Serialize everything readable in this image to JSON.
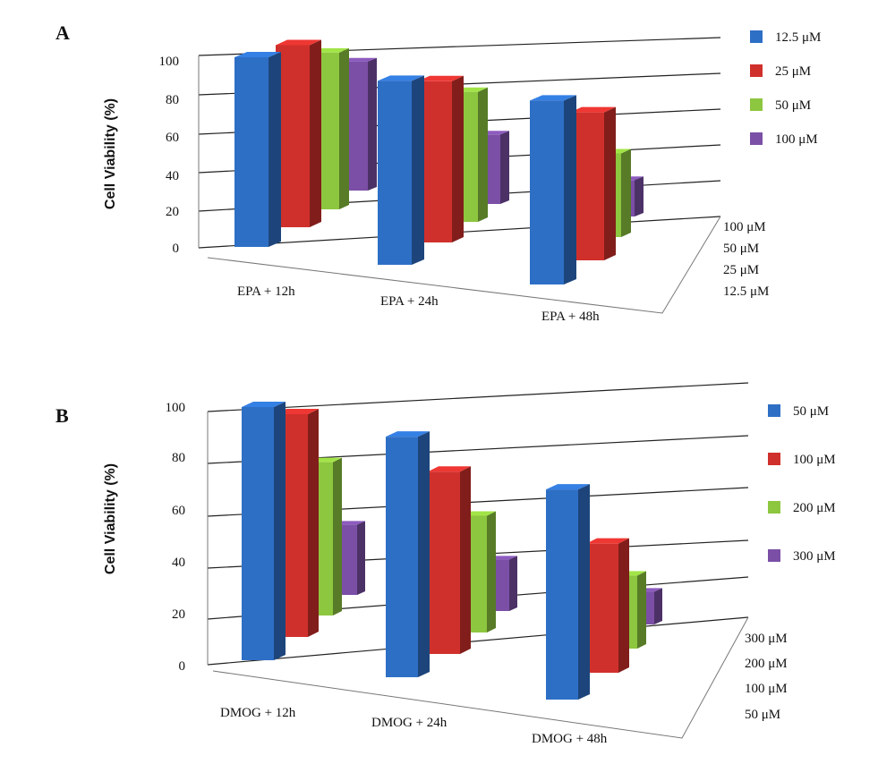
{
  "chart_data": [
    {
      "panel": "A",
      "type": "bar",
      "ylabel": "Cell Viability (%)",
      "ylim": [
        0,
        100
      ],
      "yticks": [
        "0",
        "20",
        "40",
        "60",
        "80",
        "100"
      ],
      "categories": [
        "EPA + 12h",
        "EPA + 24h",
        "EPA + 48h"
      ],
      "depth_labels": [
        "100 μM",
        "50 μM",
        "25 μM",
        "12.5 μM"
      ],
      "legend_position": "right",
      "grid": true,
      "series": [
        {
          "name": "12.5 μM",
          "color": "#2e6fc6",
          "values": [
            100,
            97,
            97
          ]
        },
        {
          "name": "25 μM",
          "color": "#d0302c",
          "values": [
            96,
            85,
            78
          ]
        },
        {
          "name": "50 μM",
          "color": "#8dc63f",
          "values": [
            88,
            73,
            47
          ]
        },
        {
          "name": "100 μM",
          "color": "#7b4fa6",
          "values": [
            78,
            42,
            22
          ]
        }
      ]
    },
    {
      "panel": "B",
      "type": "bar",
      "ylabel": "Cell Viability (%)",
      "ylim": [
        0,
        100
      ],
      "yticks": [
        "0",
        "20",
        "40",
        "60",
        "80",
        "100"
      ],
      "categories": [
        "DMOG + 12h",
        "DMOG + 24h",
        "DMOG + 48h"
      ],
      "depth_labels": [
        "300 μM",
        "200 μM",
        "100 μM",
        "50 μM"
      ],
      "legend_position": "right",
      "grid": true,
      "series": [
        {
          "name": "50 μM",
          "color": "#2e6fc6",
          "values": [
            100,
            95,
            83
          ]
        },
        {
          "name": "100 μM",
          "color": "#d0302c",
          "values": [
            88,
            72,
            51
          ]
        },
        {
          "name": "200 μM",
          "color": "#8dc63f",
          "values": [
            63,
            48,
            30
          ]
        },
        {
          "name": "300 μM",
          "color": "#7b4fa6",
          "values": [
            30,
            22,
            14
          ]
        }
      ]
    }
  ]
}
